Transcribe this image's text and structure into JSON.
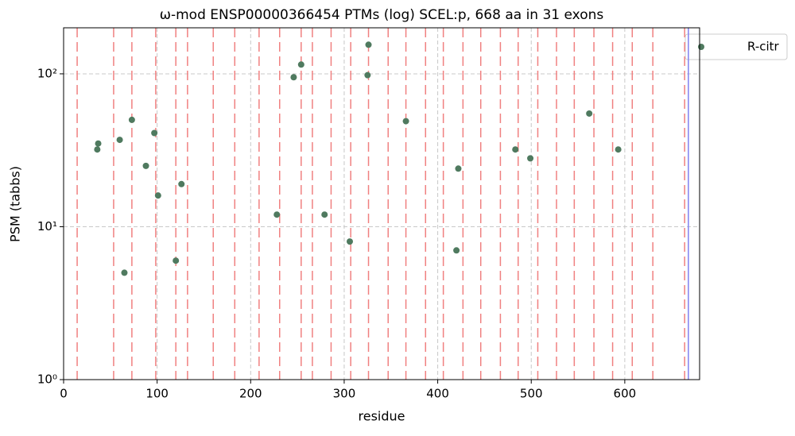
{
  "chart_data": {
    "type": "scatter",
    "title": "ω-mod ENSP00000366454 PTMs (log) SCEL:p, 668 aa in 31 exons",
    "xlabel": "residue",
    "ylabel": "PSM (tabbs)",
    "log_y": true,
    "grid": true,
    "legend": "outside upper right",
    "xlim": [
      0,
      680
    ],
    "xticks": [
      0,
      100,
      200,
      300,
      400,
      500,
      600
    ],
    "ylim": [
      1,
      200
    ],
    "yticks": [
      {
        "value": 1,
        "label": "10⁰"
      },
      {
        "value": 10,
        "label": "10¹"
      },
      {
        "value": 100,
        "label": "10²"
      }
    ],
    "exon_boundaries": [
      14.5,
      53.5,
      73,
      98.5,
      120,
      132.5,
      160,
      183,
      209,
      231,
      254,
      266,
      286,
      307,
      326,
      347,
      366,
      387,
      406,
      427,
      446,
      467,
      486,
      507,
      527,
      546,
      567,
      587,
      608,
      630,
      664
    ],
    "boundary_color": "#f08080",
    "protein_length": 668,
    "protein_length_color": "#8080f0",
    "series": [
      {
        "name": "R-citr",
        "color": "#4f7a5f",
        "x": [
          36,
          37,
          60,
          65,
          73,
          88,
          97,
          101,
          120,
          126,
          228,
          246,
          254,
          279,
          306,
          325,
          326,
          366,
          420,
          422,
          483,
          499,
          562,
          593
        ],
        "values": [
          32,
          35,
          37,
          5,
          50,
          25,
          41,
          16,
          6,
          19,
          12,
          95,
          115,
          12,
          8,
          98,
          155,
          49,
          7,
          24,
          32,
          28,
          55,
          32
        ]
      }
    ]
  }
}
